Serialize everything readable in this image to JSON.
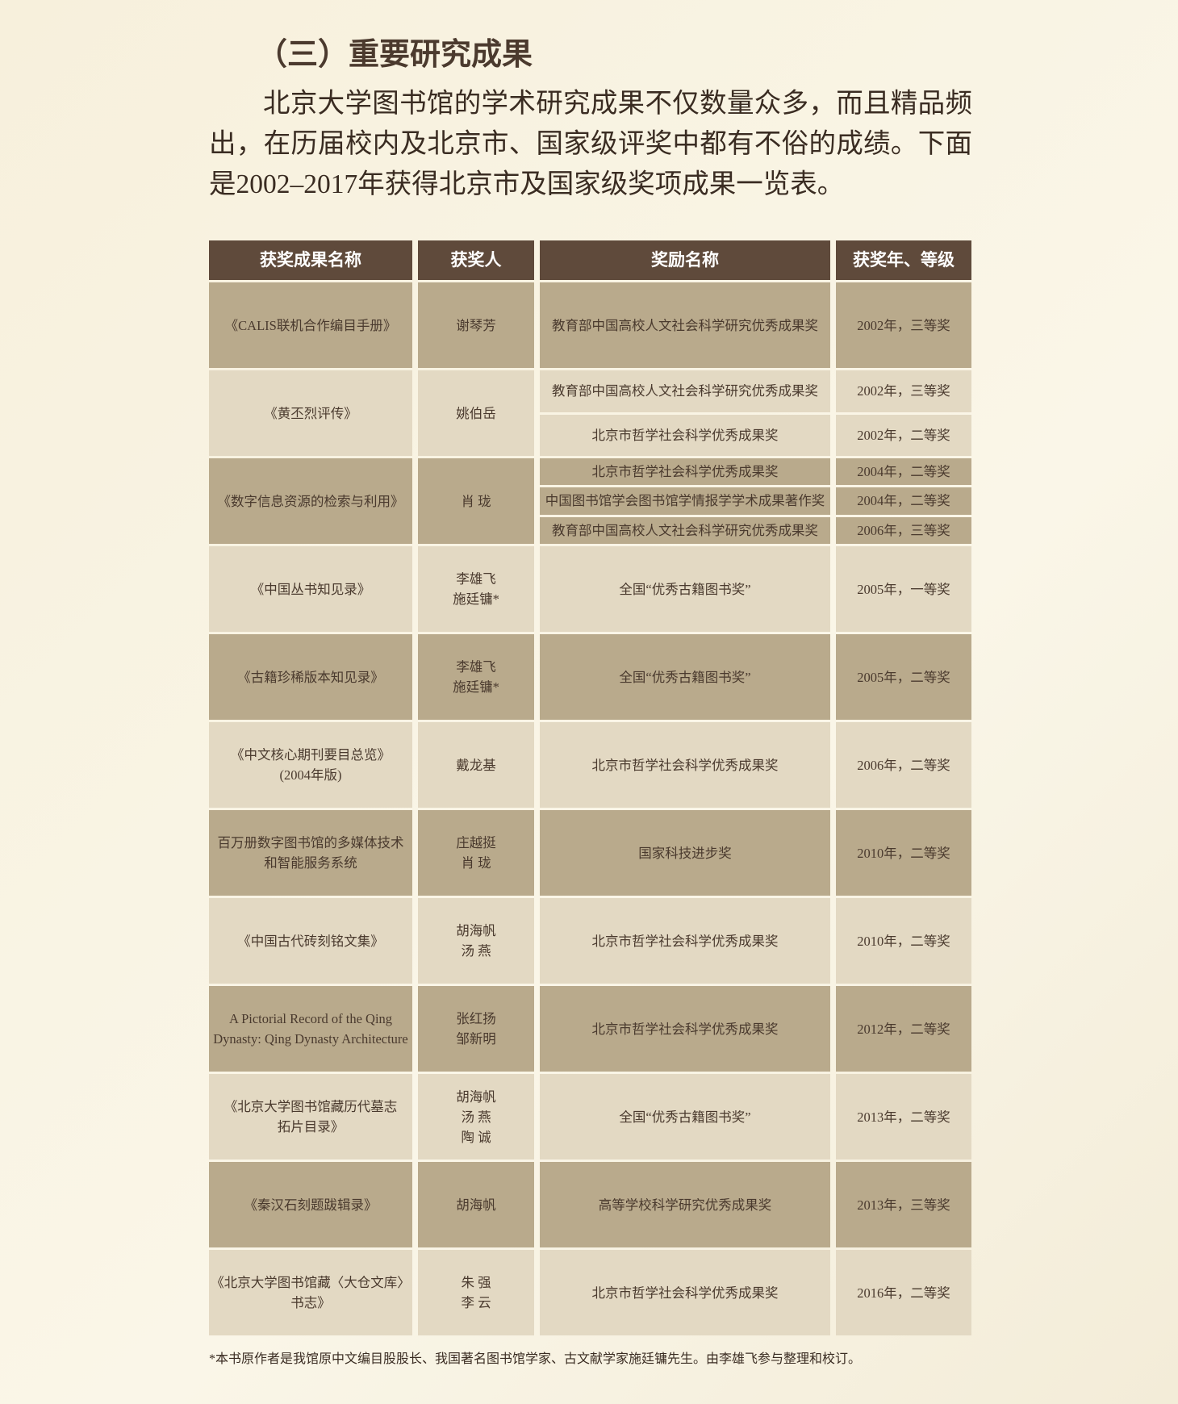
{
  "header": {
    "title": "（三）重要研究成果"
  },
  "intro": "北京大学图书馆的学术研究成果不仅数量众多，而且精品频出，在历届校内及北京市、国家级评奖中都有不俗的成绩。下面是2002–2017年获得北京市及国家级奖项成果一览表。",
  "table": {
    "columns": [
      "获奖成果名称",
      "获奖人",
      "奖励名称",
      "获奖年、等级"
    ],
    "rows": [
      {
        "title": [
          "《CALIS联机合作编目手册》"
        ],
        "people": [
          "谢琴芳"
        ],
        "awards": [
          {
            "name": "教育部中国高校人文社会科学研究优秀成果奖",
            "year": "2002年，三等奖"
          }
        ]
      },
      {
        "title": [
          "《黄丕烈评传》"
        ],
        "people": [
          "姚伯岳"
        ],
        "awards": [
          {
            "name": "教育部中国高校人文社会科学研究优秀成果奖",
            "year": "2002年，三等奖"
          },
          {
            "name": "北京市哲学社会科学优秀成果奖",
            "year": "2002年，二等奖"
          }
        ]
      },
      {
        "title": [
          "《数字信息资源的检索与利用》"
        ],
        "people": [
          "肖 珑"
        ],
        "awards": [
          {
            "name": "北京市哲学社会科学优秀成果奖",
            "year": "2004年，二等奖"
          },
          {
            "name": "中国图书馆学会图书馆学情报学学术成果著作奖",
            "year": "2004年，二等奖"
          },
          {
            "name": "教育部中国高校人文社会科学研究优秀成果奖",
            "year": "2006年，三等奖"
          }
        ]
      },
      {
        "title": [
          "《中国丛书知见录》"
        ],
        "people": [
          "李雄飞",
          "施廷镛*"
        ],
        "awards": [
          {
            "name": "全国“优秀古籍图书奖”",
            "year": "2005年，一等奖"
          }
        ]
      },
      {
        "title": [
          "《古籍珍稀版本知见录》"
        ],
        "people": [
          "李雄飞",
          "施廷镛*"
        ],
        "awards": [
          {
            "name": "全国“优秀古籍图书奖”",
            "year": "2005年，二等奖"
          }
        ]
      },
      {
        "title": [
          "《中文核心期刊要目总览》",
          "(2004年版)"
        ],
        "people": [
          "戴龙基"
        ],
        "awards": [
          {
            "name": "北京市哲学社会科学优秀成果奖",
            "year": "2006年，二等奖"
          }
        ]
      },
      {
        "title": [
          "百万册数字图书馆的多媒体技术",
          "和智能服务系统"
        ],
        "people": [
          "庄越挺",
          "肖 珑"
        ],
        "awards": [
          {
            "name": "国家科技进步奖",
            "year": "2010年，二等奖"
          }
        ]
      },
      {
        "title": [
          "《中国古代砖刻铭文集》"
        ],
        "people": [
          "胡海帆",
          "汤 燕"
        ],
        "awards": [
          {
            "name": "北京市哲学社会科学优秀成果奖",
            "year": "2010年，二等奖"
          }
        ]
      },
      {
        "title": [
          "A Pictorial Record of the Qing",
          "Dynasty: Qing Dynasty Architecture"
        ],
        "people": [
          "张红扬",
          "邹新明"
        ],
        "awards": [
          {
            "name": "北京市哲学社会科学优秀成果奖",
            "year": "2012年，二等奖"
          }
        ]
      },
      {
        "title": [
          "《北京大学图书馆藏历代墓志",
          "拓片目录》"
        ],
        "people": [
          "胡海帆",
          "汤 燕",
          "陶 诚"
        ],
        "awards": [
          {
            "name": "全国“优秀古籍图书奖”",
            "year": "2013年，二等奖"
          }
        ]
      },
      {
        "title": [
          "《秦汉石刻题跋辑录》"
        ],
        "people": [
          "胡海帆"
        ],
        "awards": [
          {
            "name": "高等学校科学研究优秀成果奖",
            "year": "2013年，三等奖"
          }
        ]
      },
      {
        "title": [
          "《北京大学图书馆藏〈大仓文库〉",
          "书志》"
        ],
        "people": [
          "朱 强",
          "李 云"
        ],
        "awards": [
          {
            "name": "北京市哲学社会科学优秀成果奖",
            "year": "2016年，二等奖"
          }
        ]
      }
    ]
  },
  "footnote": "*本书原作者是我馆原中文编目股股长、我国著名图书馆学家、古文献学家施廷镛先生。由李雄飞参与整理和校订。"
}
